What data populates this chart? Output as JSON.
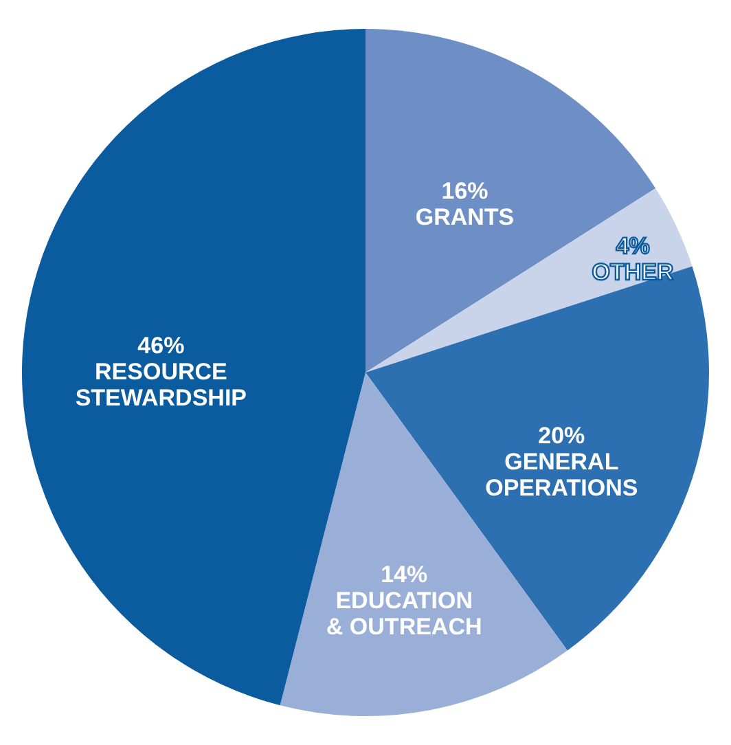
{
  "chart_data": {
    "type": "pie",
    "categories": [
      "GRANTS",
      "OTHER",
      "GENERAL OPERATIONS",
      "EDUCATION & OUTREACH",
      "RESOURCE STEWARDSHIP"
    ],
    "values": [
      16,
      4,
      20,
      14,
      46
    ],
    "value_labels": [
      "16%",
      "4%",
      "20%",
      "14%",
      "46%"
    ],
    "colors": [
      "#6d8fc5",
      "#c9d4eb",
      "#2d70b1",
      "#9aafd7",
      "#0b5b9f"
    ],
    "legend": false
  }
}
